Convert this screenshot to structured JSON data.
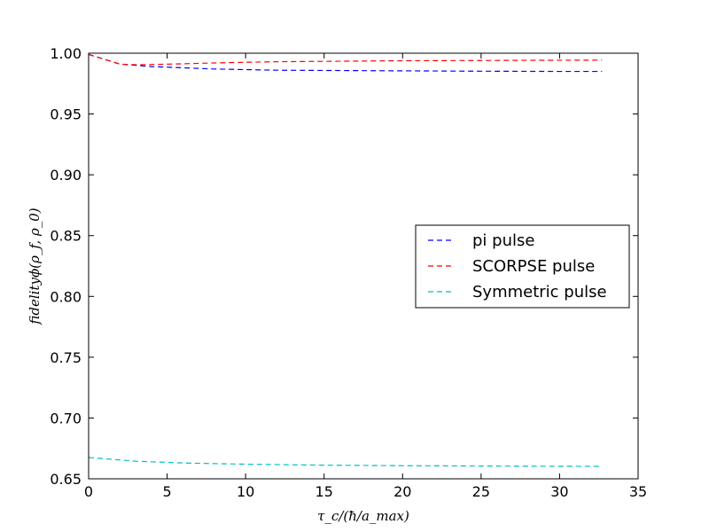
{
  "chart_data": {
    "type": "line",
    "title": "",
    "xlabel": "τ_c/(ħ/a_max)",
    "ylabel": "fidelityϕ(ρ_f, ρ_0)",
    "xlim": [
      0,
      35
    ],
    "ylim": [
      0.65,
      1.0
    ],
    "xticks": [
      0,
      5,
      10,
      15,
      20,
      25,
      30,
      35
    ],
    "yticks": [
      0.65,
      0.7,
      0.75,
      0.8,
      0.85,
      0.9,
      0.95,
      1.0
    ],
    "xtick_labels": [
      "0",
      "5",
      "10",
      "15",
      "20",
      "25",
      "30",
      "35"
    ],
    "ytick_labels": [
      "0.65",
      "0.70",
      "0.75",
      "0.80",
      "0.85",
      "0.90",
      "0.95",
      "1.00"
    ],
    "legend_position": "center-right",
    "grid": false,
    "series": [
      {
        "name": "pi pulse",
        "color": "#0000ff",
        "x": [
          0,
          1,
          2,
          3,
          4,
          5,
          6,
          8,
          10,
          12,
          15,
          20,
          25,
          30,
          32.7
        ],
        "y": [
          0.999,
          0.995,
          0.991,
          0.99,
          0.989,
          0.9885,
          0.988,
          0.987,
          0.9865,
          0.986,
          0.9858,
          0.9855,
          0.9852,
          0.985,
          0.985
        ]
      },
      {
        "name": "SCORPSE pulse",
        "color": "#ff0000",
        "x": [
          0,
          1,
          2,
          3,
          4,
          5,
          6,
          8,
          10,
          12,
          15,
          20,
          25,
          30,
          32.7
        ],
        "y": [
          0.999,
          0.995,
          0.991,
          0.9905,
          0.9907,
          0.991,
          0.9913,
          0.992,
          0.9925,
          0.993,
          0.9933,
          0.9938,
          0.994,
          0.9942,
          0.9943
        ]
      },
      {
        "name": "Symmetric pulse",
        "color": "#00bfbf",
        "x": [
          0,
          1,
          2,
          3,
          4,
          5,
          6,
          8,
          10,
          12,
          15,
          20,
          25,
          30,
          32.7
        ],
        "y": [
          0.6675,
          0.6665,
          0.6655,
          0.6645,
          0.664,
          0.6635,
          0.663,
          0.6625,
          0.662,
          0.6617,
          0.6612,
          0.6608,
          0.6605,
          0.6603,
          0.6602
        ]
      }
    ]
  }
}
